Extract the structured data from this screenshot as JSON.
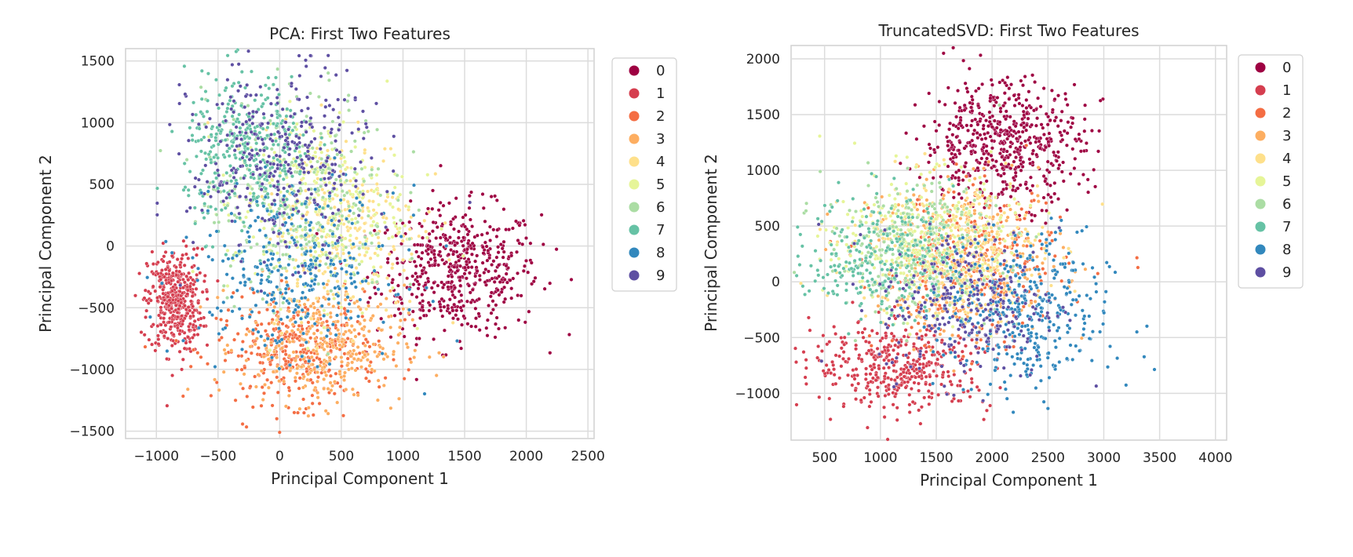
{
  "palette": [
    "#9e0142",
    "#d53e4f",
    "#f46d43",
    "#fdae61",
    "#fee08b",
    "#e6f598",
    "#abdda4",
    "#66c2a5",
    "#3288bd",
    "#5e4fa2"
  ],
  "chart_data": [
    {
      "type": "scatter",
      "title": "PCA: First Two Features",
      "xlabel": "Principal Component 1",
      "ylabel": "Principal Component 2",
      "xlim": [
        -1250,
        2550
      ],
      "ylim": [
        -1560,
        1600
      ],
      "xticks": [
        -1000,
        -500,
        0,
        500,
        1000,
        1500,
        2000,
        2500
      ],
      "yticks": [
        -1500,
        -1000,
        -500,
        0,
        500,
        1000,
        1500
      ],
      "grid": true,
      "legend_position": "outside-right",
      "legend": [
        "0",
        "1",
        "2",
        "3",
        "4",
        "5",
        "6",
        "7",
        "8",
        "9"
      ],
      "clusters": [
        {
          "label": "0",
          "center": [
            1450,
            -200
          ],
          "spread": [
            330,
            260
          ],
          "n": 520
        },
        {
          "label": "1",
          "center": [
            -850,
            -450
          ],
          "spread": [
            110,
            210
          ],
          "n": 420
        },
        {
          "label": "2",
          "center": [
            150,
            -850
          ],
          "spread": [
            330,
            210
          ],
          "n": 360
        },
        {
          "label": "3",
          "center": [
            350,
            -800
          ],
          "spread": [
            330,
            240
          ],
          "n": 360
        },
        {
          "label": "4",
          "center": [
            500,
            200
          ],
          "spread": [
            320,
            380
          ],
          "n": 300
        },
        {
          "label": "5",
          "center": [
            300,
            300
          ],
          "spread": [
            360,
            380
          ],
          "n": 300
        },
        {
          "label": "6",
          "center": [
            150,
            400
          ],
          "spread": [
            380,
            420
          ],
          "n": 320
        },
        {
          "label": "7",
          "center": [
            -250,
            750
          ],
          "spread": [
            260,
            320
          ],
          "n": 380
        },
        {
          "label": "8",
          "center": [
            100,
            -200
          ],
          "spread": [
            420,
            330
          ],
          "n": 330
        },
        {
          "label": "9",
          "center": [
            0,
            700
          ],
          "spread": [
            360,
            380
          ],
          "n": 360
        }
      ]
    },
    {
      "type": "scatter",
      "title": "TruncatedSVD: First Two Features",
      "xlabel": "Principal Component 1",
      "ylabel": "Principal Component 2",
      "xlim": [
        200,
        4100
      ],
      "ylim": [
        -1420,
        2120
      ],
      "xticks": [
        500,
        1000,
        1500,
        2000,
        2500,
        3000,
        3500,
        4000
      ],
      "yticks": [
        -1000,
        -500,
        0,
        500,
        1000,
        1500,
        2000
      ],
      "grid": true,
      "legend_position": "outside-right",
      "legend": [
        "0",
        "1",
        "2",
        "3",
        "4",
        "5",
        "6",
        "7",
        "8",
        "9"
      ],
      "clusters": [
        {
          "label": "0",
          "center": [
            2100,
            1250
          ],
          "spread": [
            360,
            280
          ],
          "n": 560
        },
        {
          "label": "1",
          "center": [
            1200,
            -750
          ],
          "spread": [
            400,
            200
          ],
          "n": 420
        },
        {
          "label": "2",
          "center": [
            1800,
            100
          ],
          "spread": [
            420,
            340
          ],
          "n": 300
        },
        {
          "label": "3",
          "center": [
            1800,
            200
          ],
          "spread": [
            420,
            340
          ],
          "n": 320
        },
        {
          "label": "4",
          "center": [
            1600,
            300
          ],
          "spread": [
            420,
            330
          ],
          "n": 320
        },
        {
          "label": "5",
          "center": [
            1400,
            350
          ],
          "spread": [
            400,
            300
          ],
          "n": 300
        },
        {
          "label": "6",
          "center": [
            1300,
            300
          ],
          "spread": [
            400,
            300
          ],
          "n": 280
        },
        {
          "label": "7",
          "center": [
            1000,
            250
          ],
          "spread": [
            320,
            280
          ],
          "n": 260
        },
        {
          "label": "8",
          "center": [
            2300,
            -300
          ],
          "spread": [
            380,
            360
          ],
          "n": 380
        },
        {
          "label": "9",
          "center": [
            1800,
            -200
          ],
          "spread": [
            400,
            340
          ],
          "n": 280
        }
      ]
    }
  ]
}
